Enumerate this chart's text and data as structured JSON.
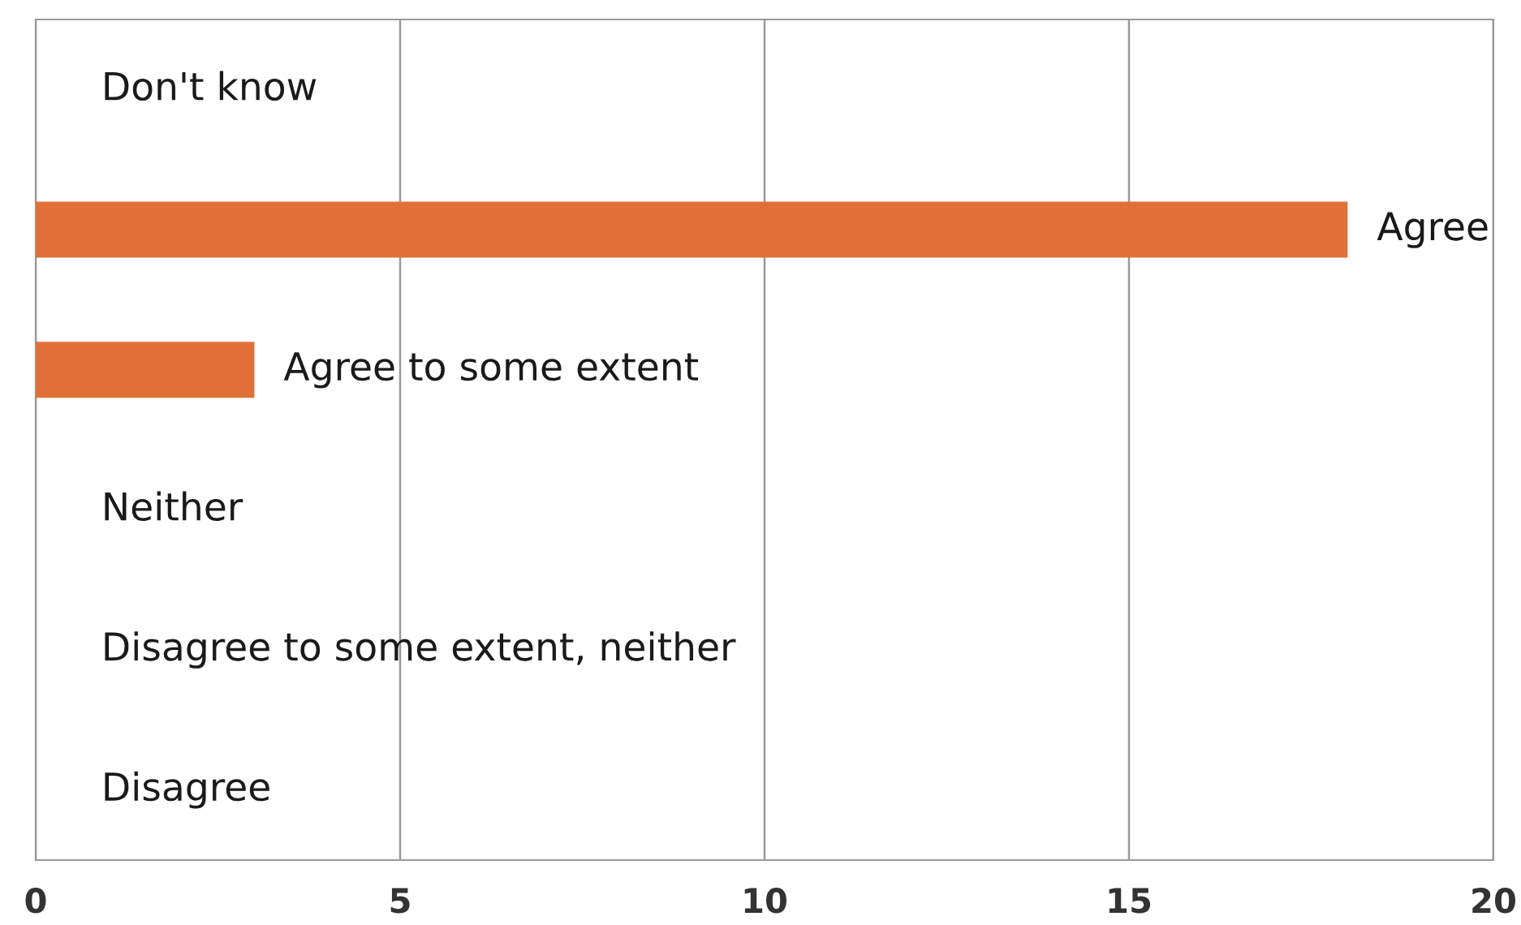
{
  "chart_data": {
    "type": "bar",
    "orientation": "horizontal",
    "categories": [
      "Don't know",
      "Agree",
      "Agree to some extent",
      "Neither",
      "Disagree to some extent, neither",
      "Disagree"
    ],
    "values": [
      0,
      18,
      3,
      0,
      0,
      0
    ],
    "color": "#e07038",
    "xlim": [
      0,
      20
    ],
    "xticks": [
      0,
      5,
      10,
      15,
      20
    ],
    "grid": "x",
    "tick_labels": "x",
    "legend": false
  }
}
